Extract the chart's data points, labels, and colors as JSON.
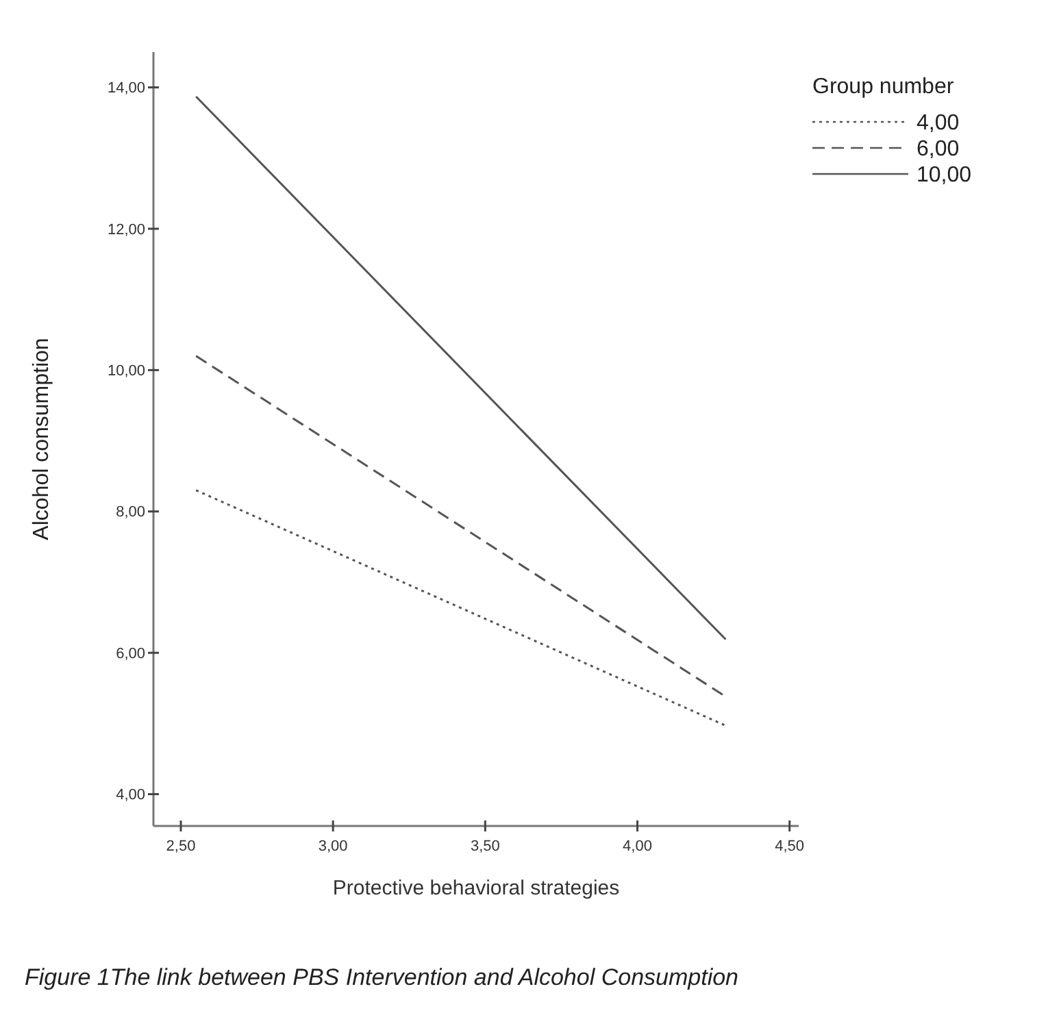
{
  "chart_data": {
    "type": "line",
    "xlabel": "Protective behavioral strategies",
    "ylabel": "Alcohol consumption",
    "legend_title": "Group number",
    "legend": "top right",
    "xlim": [
      2.41,
      4.53
    ],
    "ylim": [
      3.55,
      14.5
    ],
    "xticks": [
      {
        "value": 2.5,
        "label": "2,50"
      },
      {
        "value": 3,
        "label": "3,00"
      },
      {
        "value": 3.5,
        "label": "3,50"
      },
      {
        "value": 4,
        "label": "4,00"
      },
      {
        "value": 4.5,
        "label": "4,50"
      }
    ],
    "yticks": [
      {
        "value": 4,
        "label": "4,00"
      },
      {
        "value": 6,
        "label": "6,00"
      },
      {
        "value": 8,
        "label": "8,00"
      },
      {
        "value": 10,
        "label": "10,00"
      },
      {
        "value": 12,
        "label": "12,00"
      },
      {
        "value": 14,
        "label": "14,00"
      }
    ],
    "x": [
      2.55,
      4.29
    ],
    "series": [
      {
        "name": "4,00",
        "color": "#555555",
        "line_style": "dotted",
        "values": [
          8.3,
          4.97
        ]
      },
      {
        "name": "6,00",
        "color": "#555555",
        "line_style": "dashed",
        "values": [
          10.2,
          5.38
        ]
      },
      {
        "name": "10,00",
        "color": "#555555",
        "line_style": "solid",
        "values": [
          13.87,
          6.19
        ]
      }
    ],
    "annotations": [
      "Figure 1The link between PBS Intervention and Alcohol Consumption"
    ]
  }
}
